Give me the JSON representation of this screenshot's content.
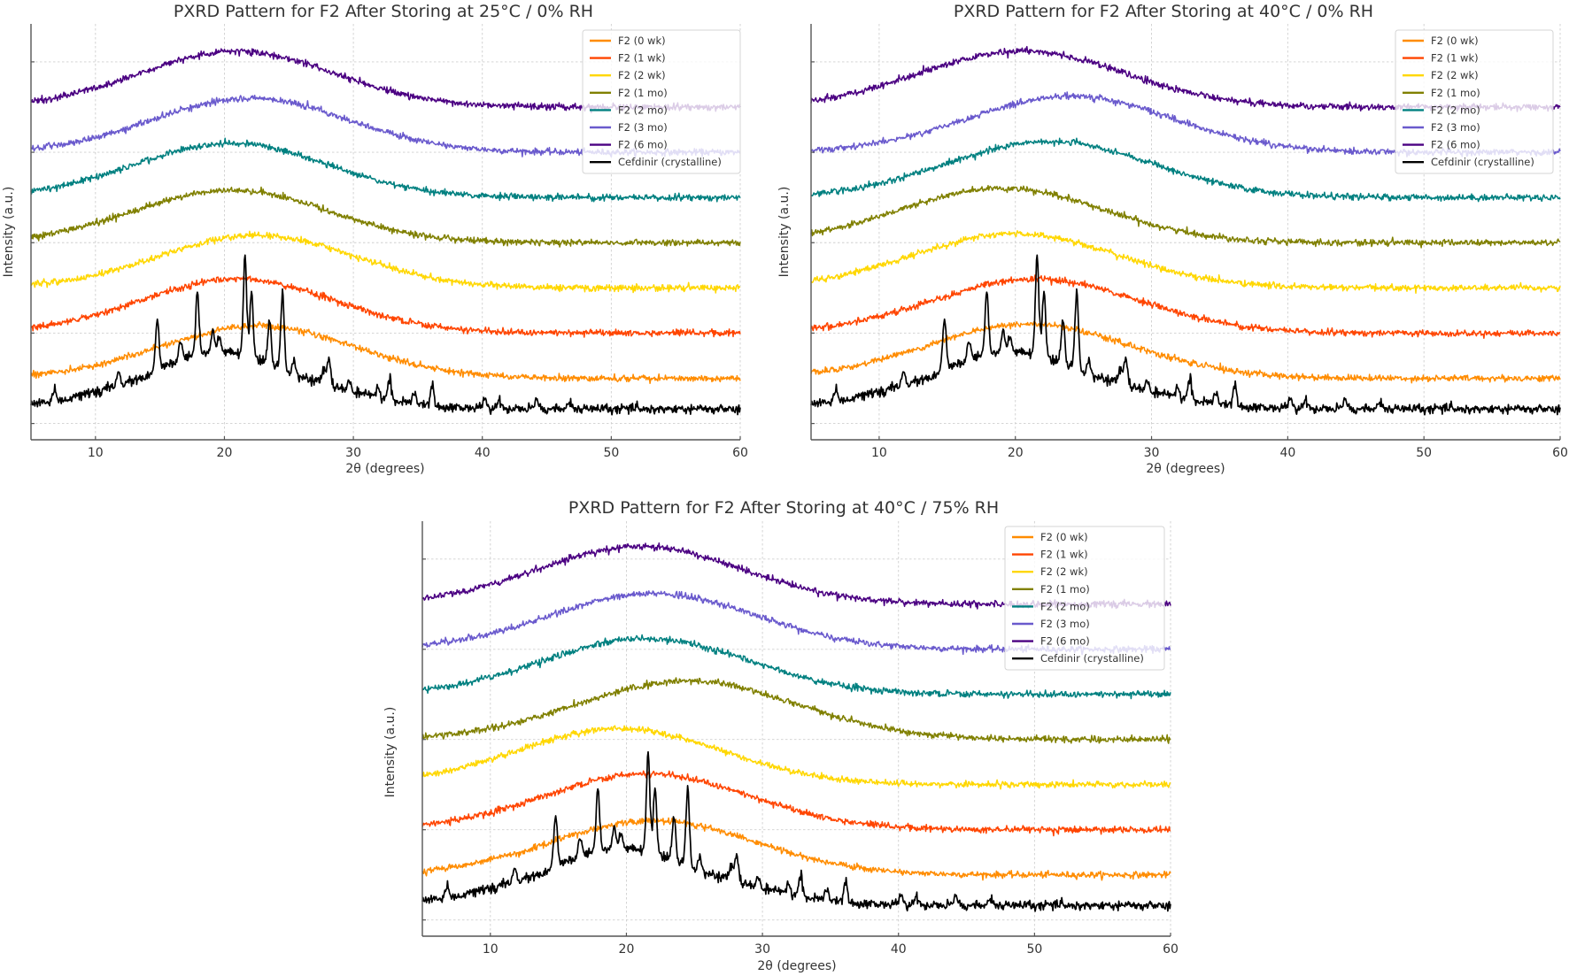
{
  "chart_data": [
    {
      "type": "line",
      "title": "PXRD Pattern for F2 After Storing at 25°C / 0% RH",
      "xlabel": "2θ (degrees)",
      "ylabel": "Intensity (a.u.)",
      "xlim": [
        5,
        60
      ],
      "ylim": [
        -0.18,
        4.42
      ],
      "xticks": [
        10,
        20,
        30,
        40,
        50,
        60
      ],
      "yticks": [
        0,
        1,
        2,
        3,
        4
      ],
      "ytick_labels_visible": false,
      "grid": true,
      "legend_position": "top-right",
      "series": [
        {
          "name": "F2 (0 wk)",
          "color": "#ff8c00",
          "offset": 0.5,
          "halo_center": 22.5,
          "halo_width": 7.5,
          "halo_height": 0.58,
          "noise": 0.035,
          "seed": 11
        },
        {
          "name": "F2 (1 wk)",
          "color": "#ff4500",
          "offset": 1.0,
          "halo_center": 21.0,
          "halo_width": 7.5,
          "halo_height": 0.6,
          "noise": 0.035,
          "seed": 12
        },
        {
          "name": "F2 (2 wk)",
          "color": "#ffd700",
          "offset": 1.5,
          "halo_center": 22.5,
          "halo_width": 7.5,
          "halo_height": 0.58,
          "noise": 0.035,
          "seed": 13
        },
        {
          "name": "F2 (1 mo)",
          "color": "#808000",
          "offset": 2.0,
          "halo_center": 20.5,
          "halo_width": 7.5,
          "halo_height": 0.58,
          "noise": 0.035,
          "seed": 14
        },
        {
          "name": "F2 (2 mo)",
          "color": "#008080",
          "offset": 2.5,
          "halo_center": 20.5,
          "halo_width": 7.5,
          "halo_height": 0.6,
          "noise": 0.035,
          "seed": 15
        },
        {
          "name": "F2 (3 mo)",
          "color": "#6a5acd",
          "offset": 3.0,
          "halo_center": 22.0,
          "halo_width": 7.5,
          "halo_height": 0.6,
          "noise": 0.035,
          "seed": 16
        },
        {
          "name": "F2 (6 mo)",
          "color": "#4b0082",
          "offset": 3.5,
          "halo_center": 21.0,
          "halo_width": 7.5,
          "halo_height": 0.62,
          "noise": 0.035,
          "seed": 17
        },
        {
          "name": "Cefdinir (crystalline)",
          "color": "#000000",
          "offset": 0.16,
          "halo_center": 20.0,
          "halo_width": 7.0,
          "halo_height": 0.52,
          "noise": 0.05,
          "seed": 18,
          "peaks": [
            [
              6.8,
              0.12
            ],
            [
              11.8,
              0.15
            ],
            [
              14.8,
              0.55
            ],
            [
              16.6,
              0.2
            ],
            [
              17.9,
              0.7
            ],
            [
              19.1,
              0.22
            ],
            [
              19.6,
              0.15
            ],
            [
              21.6,
              1.1
            ],
            [
              22.1,
              0.7
            ],
            [
              23.5,
              0.5
            ],
            [
              24.5,
              0.85
            ],
            [
              25.4,
              0.15
            ],
            [
              27.7,
              0.15
            ],
            [
              28.1,
              0.3
            ],
            [
              29.7,
              0.12
            ],
            [
              31.9,
              0.14
            ],
            [
              32.8,
              0.25
            ],
            [
              34.7,
              0.12
            ],
            [
              36.1,
              0.22
            ],
            [
              40.2,
              0.12
            ],
            [
              41.3,
              0.08
            ],
            [
              44.2,
              0.12
            ],
            [
              46.8,
              0.08
            ],
            [
              52.0,
              0.05
            ]
          ]
        }
      ]
    },
    {
      "type": "line",
      "title": "PXRD Pattern for F2 After Storing at 40°C / 0% RH",
      "xlabel": "2θ (degrees)",
      "ylabel": "Intensity (a.u.)",
      "xlim": [
        5,
        60
      ],
      "ylim": [
        -0.18,
        4.42
      ],
      "xticks": [
        10,
        20,
        30,
        40,
        50,
        60
      ],
      "yticks": [
        0,
        1,
        2,
        3,
        4
      ],
      "ytick_labels_visible": false,
      "grid": true,
      "legend_position": "top-right",
      "series": [
        {
          "name": "F2 (0 wk)",
          "color": "#ff8c00",
          "offset": 0.5,
          "halo_center": 21.0,
          "halo_width": 7.5,
          "halo_height": 0.6,
          "noise": 0.035,
          "seed": 21
        },
        {
          "name": "F2 (1 wk)",
          "color": "#ff4500",
          "offset": 1.0,
          "halo_center": 21.5,
          "halo_width": 7.5,
          "halo_height": 0.6,
          "noise": 0.035,
          "seed": 22
        },
        {
          "name": "F2 (2 wk)",
          "color": "#ffd700",
          "offset": 1.5,
          "halo_center": 20.0,
          "halo_width": 7.5,
          "halo_height": 0.6,
          "noise": 0.035,
          "seed": 23
        },
        {
          "name": "F2 (1 mo)",
          "color": "#808000",
          "offset": 2.0,
          "halo_center": 19.0,
          "halo_width": 7.5,
          "halo_height": 0.6,
          "noise": 0.035,
          "seed": 24
        },
        {
          "name": "F2 (2 mo)",
          "color": "#008080",
          "offset": 2.5,
          "halo_center": 22.5,
          "halo_width": 7.5,
          "halo_height": 0.62,
          "noise": 0.035,
          "seed": 25
        },
        {
          "name": "F2 (3 mo)",
          "color": "#6a5acd",
          "offset": 3.0,
          "halo_center": 24.0,
          "halo_width": 7.5,
          "halo_height": 0.62,
          "noise": 0.035,
          "seed": 26
        },
        {
          "name": "F2 (6 mo)",
          "color": "#4b0082",
          "offset": 3.5,
          "halo_center": 20.5,
          "halo_width": 7.5,
          "halo_height": 0.62,
          "noise": 0.035,
          "seed": 27
        },
        {
          "name": "Cefdinir (crystalline)",
          "color": "#000000",
          "offset": 0.16,
          "halo_center": 20.0,
          "halo_width": 7.0,
          "halo_height": 0.52,
          "noise": 0.05,
          "seed": 18,
          "peaks": [
            [
              6.8,
              0.12
            ],
            [
              11.8,
              0.15
            ],
            [
              14.8,
              0.55
            ],
            [
              16.6,
              0.2
            ],
            [
              17.9,
              0.7
            ],
            [
              19.1,
              0.22
            ],
            [
              19.6,
              0.15
            ],
            [
              21.6,
              1.1
            ],
            [
              22.1,
              0.7
            ],
            [
              23.5,
              0.5
            ],
            [
              24.5,
              0.85
            ],
            [
              25.4,
              0.15
            ],
            [
              27.7,
              0.15
            ],
            [
              28.1,
              0.3
            ],
            [
              29.7,
              0.12
            ],
            [
              31.9,
              0.14
            ],
            [
              32.8,
              0.25
            ],
            [
              34.7,
              0.12
            ],
            [
              36.1,
              0.22
            ],
            [
              40.2,
              0.12
            ],
            [
              41.3,
              0.08
            ],
            [
              44.2,
              0.12
            ],
            [
              46.8,
              0.08
            ],
            [
              52.0,
              0.05
            ]
          ]
        }
      ]
    },
    {
      "type": "line",
      "title": "PXRD Pattern for F2 After Storing at 40°C / 75% RH",
      "xlabel": "2θ (degrees)",
      "ylabel": "Intensity (a.u.)",
      "xlim": [
        5,
        60
      ],
      "ylim": [
        -0.18,
        4.42
      ],
      "xticks": [
        10,
        20,
        30,
        40,
        50,
        60
      ],
      "yticks": [
        0,
        1,
        2,
        3,
        4
      ],
      "ytick_labels_visible": false,
      "grid": true,
      "legend_position": "top-right",
      "series": [
        {
          "name": "F2 (0 wk)",
          "color": "#ff8c00",
          "offset": 0.5,
          "halo_center": 22.0,
          "halo_width": 7.5,
          "halo_height": 0.6,
          "noise": 0.035,
          "seed": 31
        },
        {
          "name": "F2 (1 wk)",
          "color": "#ff4500",
          "offset": 1.0,
          "halo_center": 21.5,
          "halo_width": 7.5,
          "halo_height": 0.62,
          "noise": 0.035,
          "seed": 32
        },
        {
          "name": "F2 (2 wk)",
          "color": "#ffd700",
          "offset": 1.5,
          "halo_center": 19.5,
          "halo_width": 7.5,
          "halo_height": 0.62,
          "noise": 0.035,
          "seed": 33
        },
        {
          "name": "F2 (1 mo)",
          "color": "#808000",
          "offset": 2.0,
          "halo_center": 24.5,
          "halo_width": 8.0,
          "halo_height": 0.65,
          "noise": 0.035,
          "seed": 34
        },
        {
          "name": "F2 (2 mo)",
          "color": "#008080",
          "offset": 2.5,
          "halo_center": 21.5,
          "halo_width": 7.5,
          "halo_height": 0.62,
          "noise": 0.035,
          "seed": 35
        },
        {
          "name": "F2 (3 mo)",
          "color": "#6a5acd",
          "offset": 3.0,
          "halo_center": 22.0,
          "halo_width": 7.5,
          "halo_height": 0.62,
          "noise": 0.035,
          "seed": 36
        },
        {
          "name": "F2 (6 mo)",
          "color": "#4b0082",
          "offset": 3.5,
          "halo_center": 21.0,
          "halo_width": 7.5,
          "halo_height": 0.64,
          "noise": 0.035,
          "seed": 37
        },
        {
          "name": "Cefdinir (crystalline)",
          "color": "#000000",
          "offset": 0.16,
          "halo_center": 20.0,
          "halo_width": 7.0,
          "halo_height": 0.52,
          "noise": 0.05,
          "seed": 18,
          "peaks": [
            [
              6.8,
              0.12
            ],
            [
              11.8,
              0.15
            ],
            [
              14.8,
              0.55
            ],
            [
              16.6,
              0.2
            ],
            [
              17.9,
              0.7
            ],
            [
              19.1,
              0.22
            ],
            [
              19.6,
              0.15
            ],
            [
              21.6,
              1.1
            ],
            [
              22.1,
              0.7
            ],
            [
              23.5,
              0.5
            ],
            [
              24.5,
              0.85
            ],
            [
              25.4,
              0.15
            ],
            [
              27.7,
              0.15
            ],
            [
              28.1,
              0.3
            ],
            [
              29.7,
              0.12
            ],
            [
              31.9,
              0.14
            ],
            [
              32.8,
              0.25
            ],
            [
              34.7,
              0.12
            ],
            [
              36.1,
              0.22
            ],
            [
              40.2,
              0.12
            ],
            [
              41.3,
              0.08
            ],
            [
              44.2,
              0.12
            ],
            [
              46.8,
              0.08
            ],
            [
              52.0,
              0.05
            ]
          ]
        }
      ]
    }
  ]
}
